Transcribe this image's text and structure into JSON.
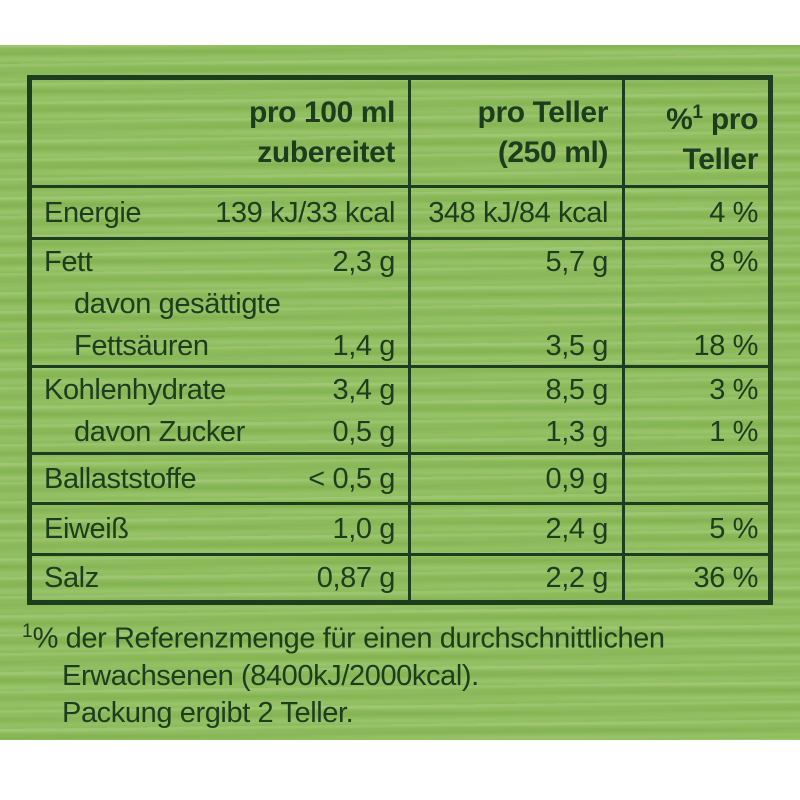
{
  "colors": {
    "background_green": "#8dbc5a",
    "ink_green": "#1e3c1e",
    "page_white": "#ffffff"
  },
  "nutrition_table": {
    "header": {
      "per100_line1": "pro 100 ml",
      "per100_line2": "zubereitet",
      "teller_line1": "pro Teller",
      "teller_line2": "(250 ml)",
      "pct_percent": "%",
      "pct_sup": "1",
      "pct_line1_rest": " pro",
      "pct_line2": "Teller"
    },
    "rows": [
      {
        "lines": [
          {
            "label": "Energie",
            "per100": "139 kJ/33 kcal",
            "teller": "348 kJ/84 kcal",
            "pct": "4 %"
          }
        ]
      },
      {
        "lines": [
          {
            "label": "Fett",
            "per100": "2,3 g",
            "teller": "5,7 g",
            "pct": "8 %"
          },
          {
            "label": "davon gesättigte",
            "per100": "",
            "teller": "",
            "pct": ""
          },
          {
            "label": "Fettsäuren",
            "per100": "1,4 g",
            "teller": "3,5 g",
            "pct": "18 %"
          }
        ]
      },
      {
        "lines": [
          {
            "label": "Kohlenhydrate",
            "per100": "3,4 g",
            "teller": "8,5 g",
            "pct": "3 %"
          },
          {
            "label": "davon Zucker",
            "per100": "0,5 g",
            "teller": "1,3 g",
            "pct": "1 %"
          }
        ]
      },
      {
        "lines": [
          {
            "label": "Ballaststoffe",
            "per100": "< 0,5 g",
            "teller": "0,9 g",
            "pct": ""
          }
        ]
      },
      {
        "lines": [
          {
            "label": "Eiweiß",
            "per100": "1,0 g",
            "teller": "2,4 g",
            "pct": "5 %"
          }
        ]
      },
      {
        "lines": [
          {
            "label": "Salz",
            "per100": "0,87 g",
            "teller": "2,2 g",
            "pct": "36 %"
          }
        ]
      }
    ]
  },
  "footnote": {
    "sup": "1",
    "line1_rest": "% der Referenzmenge für einen durchschnittlichen",
    "line2": "Erwachsenen (8400kJ/2000kcal).",
    "line3": "Packung ergibt 2 Teller."
  }
}
